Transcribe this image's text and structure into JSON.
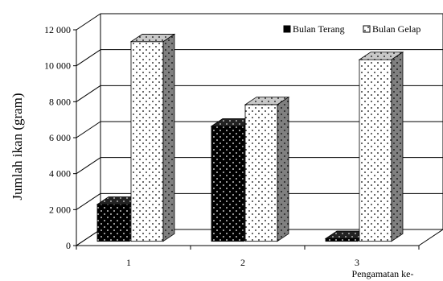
{
  "chart_data": {
    "type": "bar",
    "style": "3d-clustered-column",
    "categories": [
      "1",
      "2",
      "3"
    ],
    "series": [
      {
        "name": "Bulan Terang",
        "values": [
          2050,
          6400,
          150
        ],
        "color": "#000000",
        "pattern": "white-dots-on-black"
      },
      {
        "name": "Bulan Gelap",
        "values": [
          11100,
          7600,
          10100
        ],
        "color": "#ffffff",
        "pattern": "black-dots-on-white"
      }
    ],
    "xlabel": "Pengamatan ke-",
    "ylabel": "Jumlah ikan (gram)",
    "ylim": [
      0,
      12000
    ],
    "yticks": [
      0,
      2000,
      4000,
      6000,
      8000,
      10000,
      12000
    ],
    "ytick_labels": [
      "0",
      "2 000",
      "4 000",
      "6 000",
      "8 000",
      "10 000",
      "12 000"
    ],
    "grid": true,
    "legend_position": "top-right"
  }
}
